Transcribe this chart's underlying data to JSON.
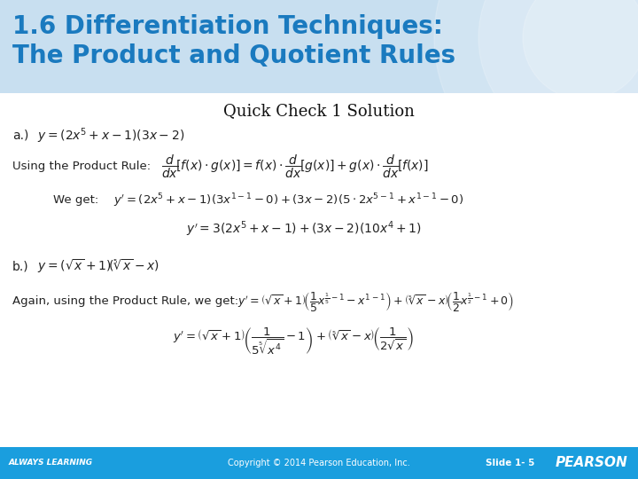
{
  "title_line1": "1.6 Differentiation Techniques:",
  "title_line2": "The Product and Quotient Rules",
  "title_color": "#1a7abf",
  "header_bg": "#c8dff0",
  "subtitle": "Quick Check 1 Solution",
  "footer_bg": "#1a9ede",
  "footer_text_left": "ALWAYS LEARNING",
  "footer_text_center": "Copyright © 2014 Pearson Education, Inc.",
  "footer_text_slide": "Slide 1- 5",
  "footer_text_right": "PEARSON",
  "bg_color": "#ffffff",
  "content_bg": "#ffffff"
}
